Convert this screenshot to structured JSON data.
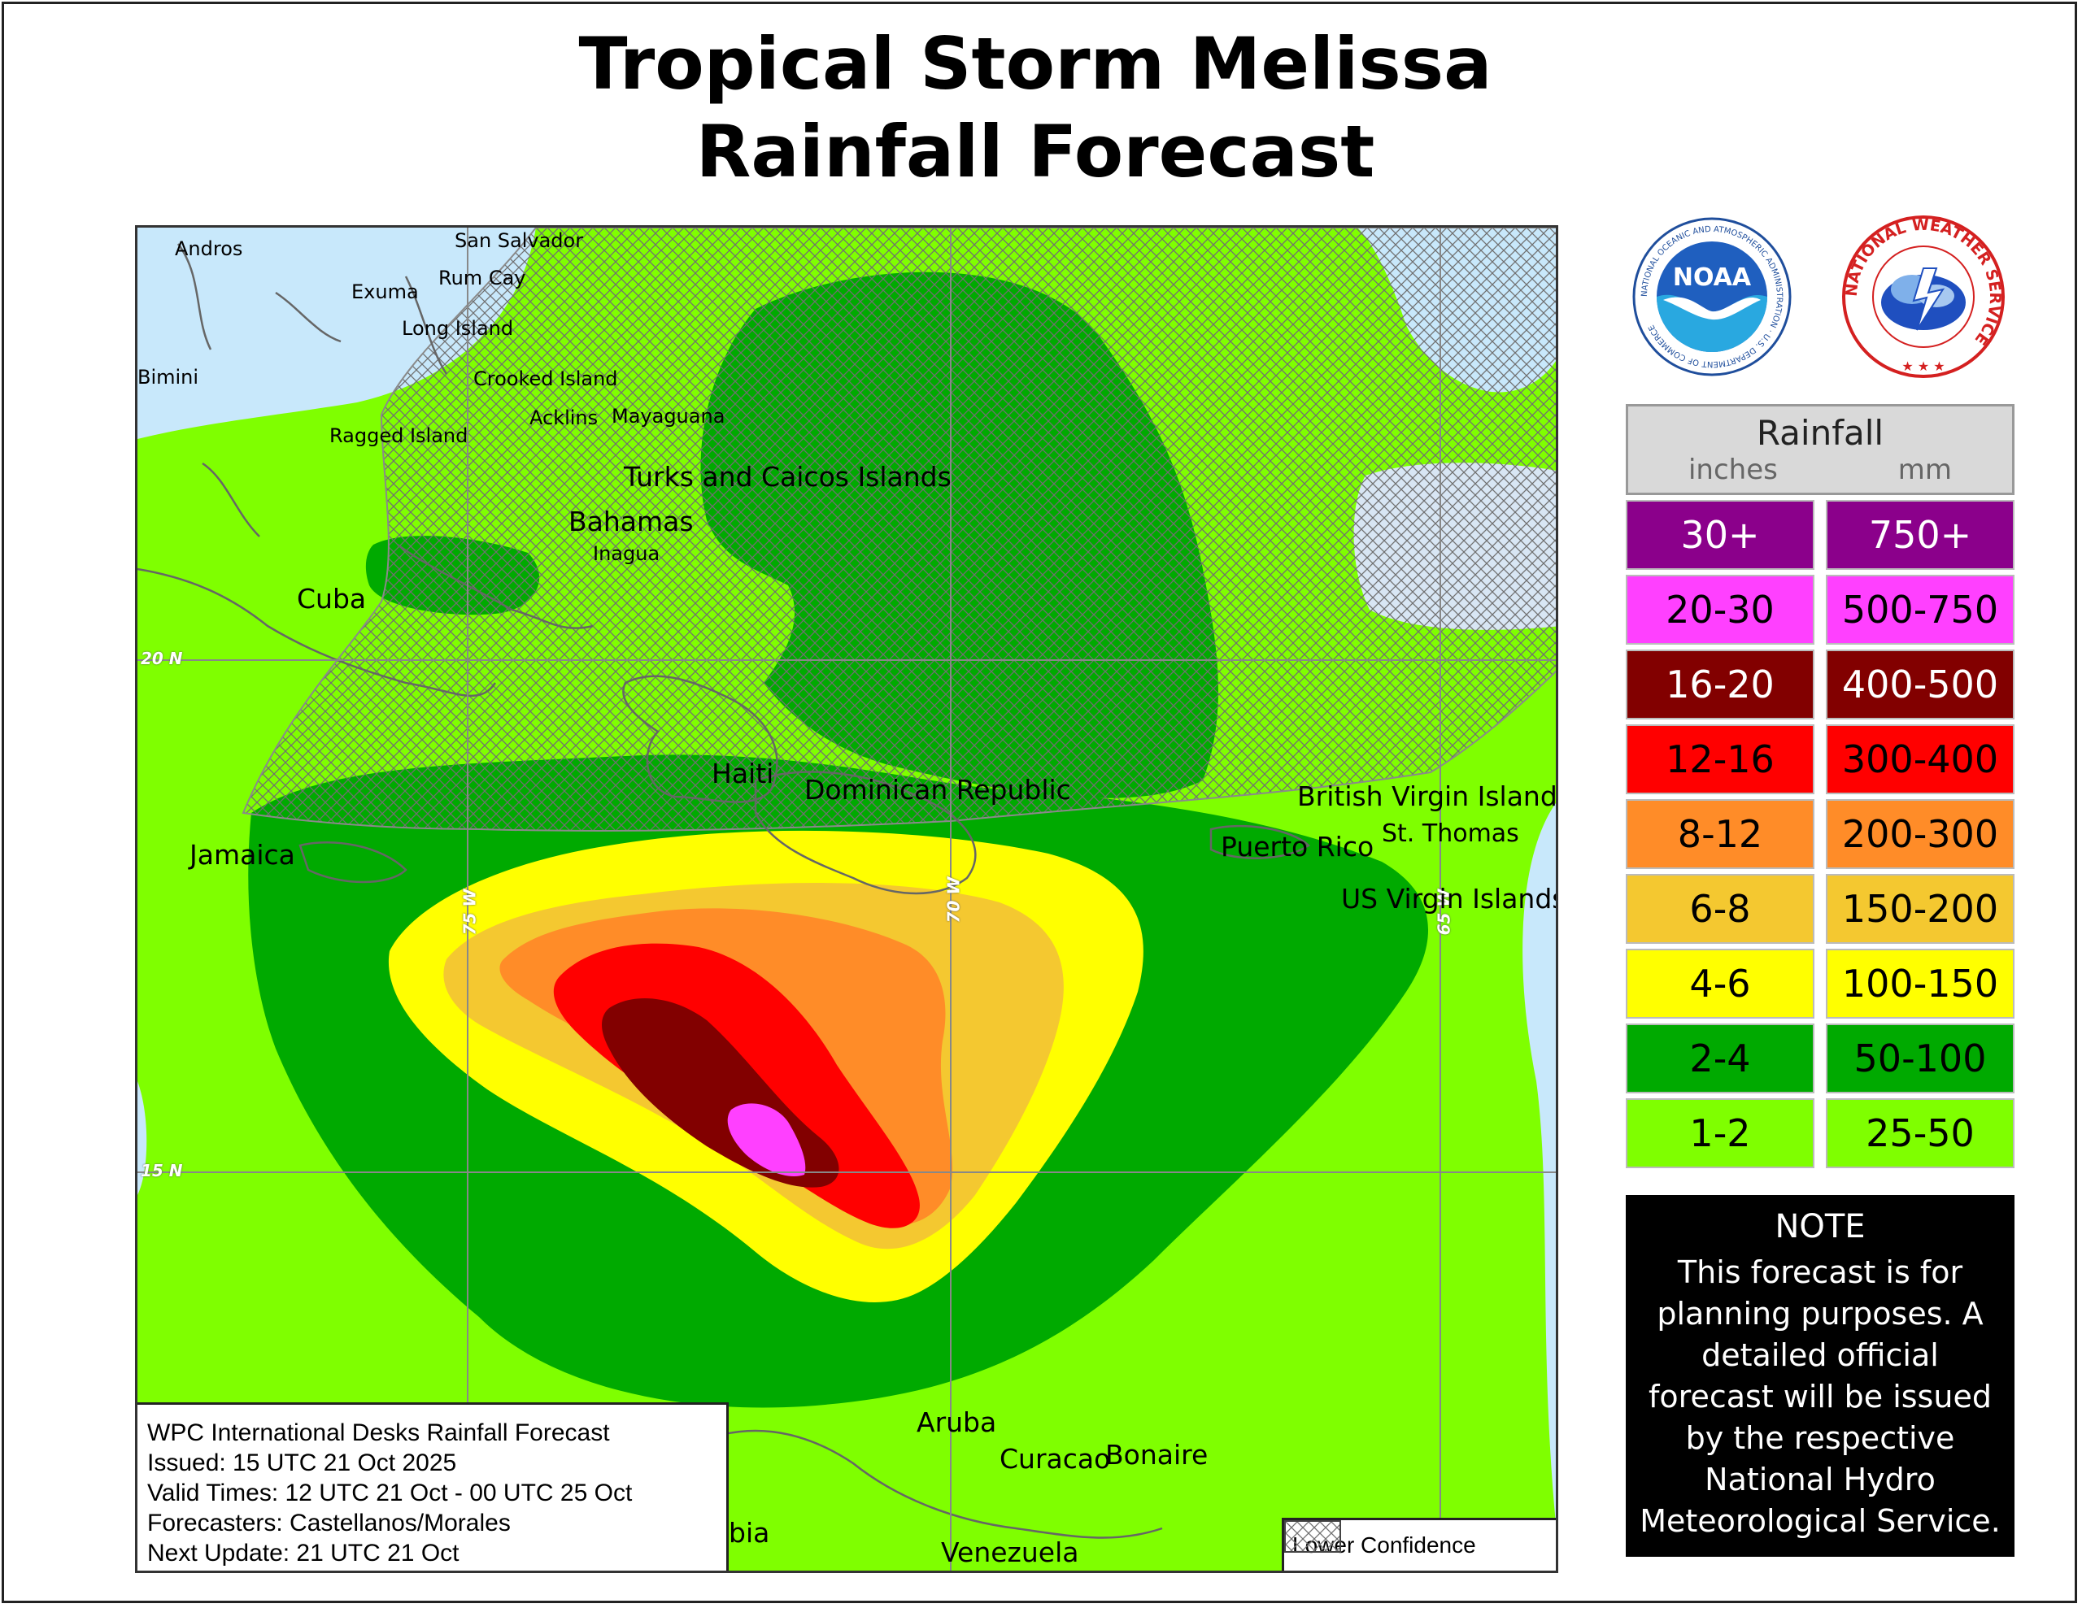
{
  "title": {
    "line1": "Tropical Storm Melissa",
    "line2": "Rainfall Forecast"
  },
  "map": {
    "places": [
      {
        "id": "andros",
        "name": "Andros",
        "size": "small"
      },
      {
        "id": "san-salvador",
        "name": "San Salvador",
        "size": "small"
      },
      {
        "id": "rum-cay",
        "name": "Rum Cay",
        "size": "small"
      },
      {
        "id": "exuma",
        "name": "Exuma",
        "size": "small"
      },
      {
        "id": "long-island",
        "name": "Long Island",
        "size": "small"
      },
      {
        "id": "bimini",
        "name": "Bimini",
        "size": "small"
      },
      {
        "id": "crooked-island",
        "name": "Crooked Island",
        "size": "small"
      },
      {
        "id": "acklins",
        "name": "Acklins",
        "size": "small"
      },
      {
        "id": "mayaguana",
        "name": "Mayaguana",
        "size": "small"
      },
      {
        "id": "ragged-island",
        "name": "Ragged Island",
        "size": "small"
      },
      {
        "id": "turks-caicos",
        "name": "Turks and Caicos Islands",
        "size": "big"
      },
      {
        "id": "bahamas",
        "name": "Bahamas",
        "size": "big"
      },
      {
        "id": "inagua",
        "name": "Inagua",
        "size": "small"
      },
      {
        "id": "cuba",
        "name": "Cuba",
        "size": "big"
      },
      {
        "id": "haiti",
        "name": "Haiti",
        "size": "big"
      },
      {
        "id": "dominican-republic",
        "name": "Dominican Republic",
        "size": "big"
      },
      {
        "id": "british-virgin-islands",
        "name": "British Virgin Islands",
        "size": "big"
      },
      {
        "id": "st-thomas",
        "name": "St. Thomas",
        "size": "small"
      },
      {
        "id": "puerto-rico",
        "name": "Puerto Rico",
        "size": "big"
      },
      {
        "id": "us-virgin-islands",
        "name": "US Virgin Islands",
        "size": "big"
      },
      {
        "id": "jamaica",
        "name": "Jamaica",
        "size": "big"
      },
      {
        "id": "aruba",
        "name": "Aruba",
        "size": "big"
      },
      {
        "id": "curacao",
        "name": "Curacao",
        "size": "big"
      },
      {
        "id": "bonaire",
        "name": "Bonaire",
        "size": "big"
      },
      {
        "id": "colombia-partial",
        "name": "bia",
        "size": "big"
      },
      {
        "id": "venezuela",
        "name": "Venezuela",
        "size": "big"
      }
    ],
    "grid_labels": [
      {
        "id": "lat-20",
        "text": "20 N"
      },
      {
        "id": "lat-15",
        "text": "15 N"
      },
      {
        "id": "lon-75",
        "text": "75 W"
      },
      {
        "id": "lon-70",
        "text": "70 W"
      },
      {
        "id": "lon-65",
        "text": "65 W"
      }
    ],
    "colors": {
      "ocean": "#c8e8fb",
      "band_1_2": "#7fff00",
      "band_2_4": "#00aa00",
      "band_4_6": "#ffff00",
      "band_6_8": "#f4c830",
      "band_8_12": "#ff8c28",
      "band_12_16": "#ff0000",
      "band_16_20": "#820000",
      "band_20_30": "#ff40ff",
      "grid": "#888888",
      "coast": "#666666"
    },
    "lower_confidence_label": "Lower Confidence"
  },
  "info": {
    "line1": "WPC International Desks Rainfall Forecast",
    "line2": "Issued: 15 UTC 21 Oct 2025",
    "line3": "Valid Times: 12 UTC 21 Oct - 00 UTC 25 Oct",
    "line4": "Forecasters: Castellanos/Morales",
    "line5": "Next Update: 21 UTC 21 Oct"
  },
  "logos": {
    "noaa_text": "NOAA",
    "noaa_ring": "NATIONAL OCEANIC AND ATMOSPHERIC ADMINISTRATION · U.S. DEPARTMENT OF COMMERCE",
    "nws_ring": "NATIONAL WEATHER SERVICE"
  },
  "legend": {
    "title": "Rainfall",
    "unit_inches": "inches",
    "unit_mm": "mm",
    "rows": [
      {
        "inches": "30+",
        "mm": "750+",
        "color": "#8b008b",
        "text": "#ffffff"
      },
      {
        "inches": "20-30",
        "mm": "500-750",
        "color": "#ff40ff",
        "text": "#000000"
      },
      {
        "inches": "16-20",
        "mm": "400-500",
        "color": "#820000",
        "text": "#ffffff"
      },
      {
        "inches": "12-16",
        "mm": "300-400",
        "color": "#ff0000",
        "text": "#000000"
      },
      {
        "inches": "8-12",
        "mm": "200-300",
        "color": "#ff8c28",
        "text": "#000000"
      },
      {
        "inches": "6-8",
        "mm": "150-200",
        "color": "#f4c830",
        "text": "#000000"
      },
      {
        "inches": "4-6",
        "mm": "100-150",
        "color": "#ffff00",
        "text": "#000000"
      },
      {
        "inches": "2-4",
        "mm": "50-100",
        "color": "#00aa00",
        "text": "#000000"
      },
      {
        "inches": "1-2",
        "mm": "25-50",
        "color": "#7fff00",
        "text": "#000000"
      }
    ]
  },
  "note": {
    "title": "NOTE",
    "text": "This forecast is for planning purposes. A detailed official forecast will be issued by the respective National Hydro Meteorological Service."
  }
}
